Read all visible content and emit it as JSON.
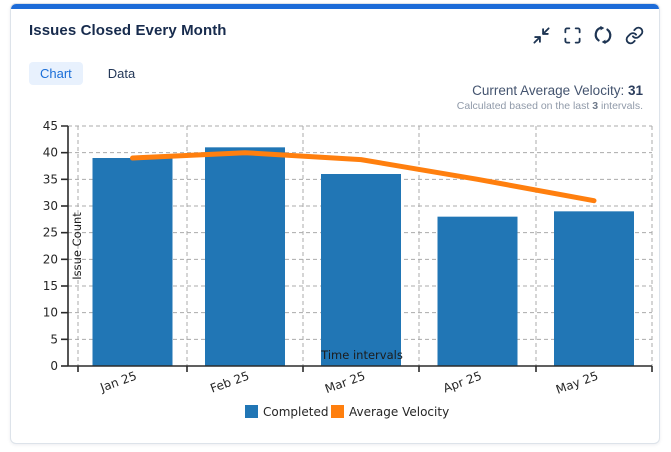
{
  "header": {
    "title": "Issues Closed Every Month",
    "action_icons": [
      "collapse",
      "fullscreen",
      "refresh",
      "link"
    ]
  },
  "tabs": [
    {
      "label": "Chart",
      "active": true
    },
    {
      "label": "Data",
      "active": false
    }
  ],
  "velocity": {
    "label": "Current Average Velocity:",
    "value": "31",
    "subtitle_prefix": "Calculated based on the last",
    "subtitle_count": "3",
    "subtitle_suffix": "intervals."
  },
  "chart_data": {
    "type": "bar",
    "categories": [
      "Jan 25",
      "Feb 25",
      "Mar 25",
      "Apr 25",
      "May 25"
    ],
    "series": [
      {
        "name": "Completed",
        "type": "bar",
        "color": "#2176b5",
        "values": [
          39,
          41,
          36,
          28,
          29
        ]
      },
      {
        "name": "Average Velocity",
        "type": "line",
        "color": "#ff7f0e",
        "values": [
          39,
          40,
          38.7,
          35,
          31
        ]
      }
    ],
    "title": "",
    "xlabel": "Time intervals",
    "ylabel": "Issue Count",
    "ylim": [
      0,
      45
    ],
    "ytick_step": 5,
    "grid": true,
    "legend_position": "bottom"
  },
  "colors": {
    "accent": "#1c6bd8",
    "tab_active_bg": "#e8f1fd",
    "tab_active_text": "#1a6ed8",
    "title_text": "#172b4d",
    "icon": "#1e3553"
  }
}
